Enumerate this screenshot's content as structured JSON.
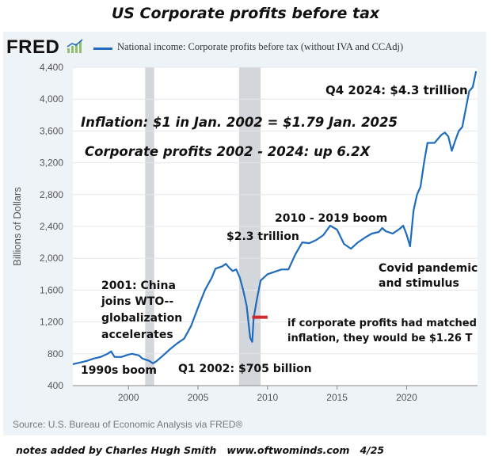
{
  "page_title": "US Corporate profits before tax",
  "fred_logo": "FRED",
  "legend_label": "National income: Corporate profits before tax (without IVA and CCAdj)",
  "source": "Source: U.S. Bureau of Economic Analysis via FRED®",
  "footer_note": "notes added by Charles Hugh Smith   www.oftwominds.com   4/25",
  "colors": {
    "line": "#1f6bbd",
    "recession": "#d3d7dc",
    "marker": "#d22a2a",
    "panel": "#eef3f8"
  },
  "chart_data": {
    "type": "line",
    "ylabel": "Billions of Dollars",
    "xlabel": "",
    "xlim": [
      1996.0,
      2025.1
    ],
    "ylim": [
      400,
      4400
    ],
    "x_ticks": [
      2000,
      2005,
      2010,
      2015,
      2020
    ],
    "y_ticks": [
      400,
      800,
      1200,
      1600,
      2000,
      2400,
      2800,
      3200,
      3600,
      4000,
      4400
    ],
    "y_tick_labels": [
      "400",
      "800",
      "1,200",
      "1,600",
      "2,000",
      "2,400",
      "2,800",
      "3,200",
      "3,600",
      "4,000",
      "4,400"
    ],
    "recessions": [
      [
        2001.2,
        2001.85
      ],
      [
        2007.95,
        2009.5
      ]
    ],
    "series": [
      {
        "name": "National income: Corporate profits before tax (without IVA and CCAdj)",
        "points": [
          [
            1996.0,
            670
          ],
          [
            1996.5,
            690
          ],
          [
            1997.0,
            710
          ],
          [
            1997.5,
            740
          ],
          [
            1998.0,
            760
          ],
          [
            1998.5,
            800
          ],
          [
            1998.75,
            830
          ],
          [
            1999.0,
            760
          ],
          [
            1999.5,
            760
          ],
          [
            2000.0,
            790
          ],
          [
            2000.25,
            800
          ],
          [
            2000.75,
            780
          ],
          [
            2001.0,
            740
          ],
          [
            2001.5,
            710
          ],
          [
            2001.75,
            680
          ],
          [
            2002.0,
            705
          ],
          [
            2002.5,
            780
          ],
          [
            2003.0,
            860
          ],
          [
            2003.5,
            930
          ],
          [
            2004.0,
            990
          ],
          [
            2004.5,
            1150
          ],
          [
            2005.0,
            1380
          ],
          [
            2005.5,
            1600
          ],
          [
            2006.0,
            1760
          ],
          [
            2006.25,
            1870
          ],
          [
            2006.75,
            1900
          ],
          [
            2007.0,
            1930
          ],
          [
            2007.25,
            1880
          ],
          [
            2007.5,
            1840
          ],
          [
            2007.75,
            1860
          ],
          [
            2008.0,
            1760
          ],
          [
            2008.25,
            1600
          ],
          [
            2008.5,
            1400
          ],
          [
            2008.75,
            1000
          ],
          [
            2008.9,
            950
          ],
          [
            2009.0,
            1250
          ],
          [
            2009.25,
            1500
          ],
          [
            2009.5,
            1720
          ],
          [
            2010.0,
            1800
          ],
          [
            2010.5,
            1830
          ],
          [
            2011.0,
            1860
          ],
          [
            2011.5,
            1860
          ],
          [
            2012.0,
            2050
          ],
          [
            2012.5,
            2200
          ],
          [
            2013.0,
            2190
          ],
          [
            2013.5,
            2230
          ],
          [
            2014.0,
            2290
          ],
          [
            2014.5,
            2410
          ],
          [
            2015.0,
            2360
          ],
          [
            2015.5,
            2180
          ],
          [
            2016.0,
            2120
          ],
          [
            2016.5,
            2200
          ],
          [
            2017.0,
            2260
          ],
          [
            2017.5,
            2310
          ],
          [
            2018.0,
            2330
          ],
          [
            2018.25,
            2380
          ],
          [
            2018.5,
            2340
          ],
          [
            2019.0,
            2310
          ],
          [
            2019.5,
            2370
          ],
          [
            2019.75,
            2410
          ],
          [
            2020.0,
            2300
          ],
          [
            2020.25,
            2150
          ],
          [
            2020.5,
            2600
          ],
          [
            2020.75,
            2800
          ],
          [
            2021.0,
            2900
          ],
          [
            2021.25,
            3200
          ],
          [
            2021.5,
            3450
          ],
          [
            2022.0,
            3450
          ],
          [
            2022.5,
            3550
          ],
          [
            2022.75,
            3580
          ],
          [
            2023.0,
            3530
          ],
          [
            2023.25,
            3350
          ],
          [
            2023.5,
            3480
          ],
          [
            2023.75,
            3600
          ],
          [
            2024.0,
            3650
          ],
          [
            2024.5,
            4100
          ],
          [
            2024.75,
            4150
          ],
          [
            2025.0,
            4350
          ]
        ]
      }
    ],
    "reference_marker": {
      "x_start": 2008.9,
      "x_end": 2010.0,
      "y": 1260
    },
    "annotations": {
      "q4_2024": "Q4 2024: $4.3 trillion",
      "inflation": "Inflation: $1 in Jan. 2002 = $1.79 Jan. 2025",
      "corp_profits": "Corporate profits 2002 - 2024: up 6.2X",
      "boom_2010": "2010 - 2019 boom",
      "trillion_2_3": "$2.3 trillion",
      "covid_1": "Covid pandemic",
      "covid_2": "and stimulus",
      "china_1": "2001: China",
      "china_2": "joins WTO--",
      "china_3": "globalization",
      "china_4": "accelerates",
      "matched_1": "if corporate profits had matched",
      "matched_2": "inflation, they would be $1.26 T",
      "q1_2002": "Q1 2002: $705 billion",
      "boom_1990s": "1990s boom"
    }
  }
}
